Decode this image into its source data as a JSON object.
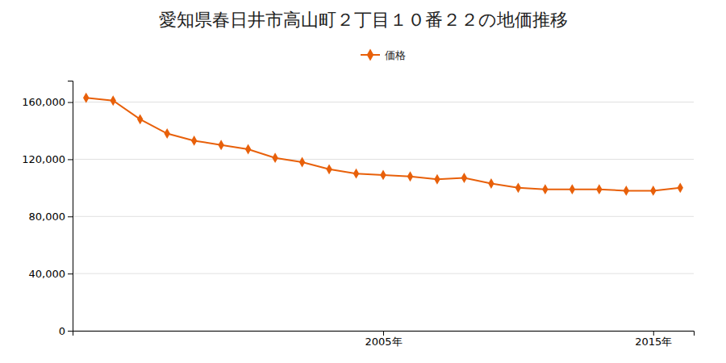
{
  "chart_data": {
    "type": "line",
    "title": "愛知県春日井市高山町２丁目１０番２２の地価推移",
    "x": [
      1994,
      1995,
      1996,
      1997,
      1998,
      1999,
      2000,
      2001,
      2002,
      2003,
      2004,
      2005,
      2006,
      2007,
      2008,
      2009,
      2010,
      2011,
      2012,
      2013,
      2014,
      2015,
      2016
    ],
    "series": [
      {
        "name": "価格",
        "color": "#e8600a",
        "marker": "diamond",
        "values": [
          163000,
          161000,
          148000,
          138000,
          133000,
          130000,
          127000,
          121000,
          118000,
          113000,
          110000,
          109000,
          108000,
          106000,
          107000,
          103000,
          100000,
          99000,
          99000,
          99000,
          98000,
          98000,
          100000
        ]
      }
    ],
    "xlim": [
      1993.5,
      2016.5
    ],
    "xticks": [
      {
        "value": 2005,
        "label": "2005年"
      },
      {
        "value": 2015,
        "label": "2015年"
      }
    ],
    "ylim": [
      0,
      175000
    ],
    "yticks": [
      0,
      {
        "value": 40000,
        "label": "40,000"
      },
      {
        "value": 80000,
        "label": "80,000"
      },
      {
        "value": 120000,
        "label": "120,000"
      },
      {
        "value": 160000,
        "label": "160,000"
      }
    ],
    "grid": true,
    "legend": "top"
  }
}
